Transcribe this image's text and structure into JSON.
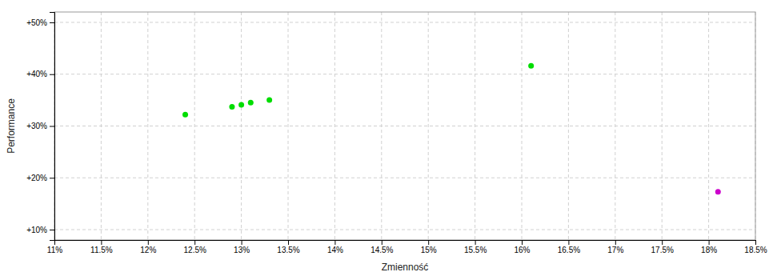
{
  "chart_data": {
    "type": "scatter",
    "xlabel": "Zmienność",
    "ylabel": "Performance",
    "series": [
      {
        "color": "#00dd00",
        "x": [
          0.124,
          0.129,
          0.13,
          0.131,
          0.133,
          0.161
        ],
        "values": [
          0.322,
          0.337,
          0.341,
          0.345,
          0.35,
          0.416
        ]
      },
      {
        "color": "#cc00cc",
        "x": [
          0.181
        ],
        "values": [
          0.173
        ]
      }
    ],
    "xlim": [
      0.11,
      0.185
    ],
    "ylim": [
      0.08,
      0.52
    ],
    "xticks": [
      {
        "value": 0.11,
        "label": "11%"
      },
      {
        "value": 0.115,
        "label": "11.5%"
      },
      {
        "value": 0.12,
        "label": "12%"
      },
      {
        "value": 0.125,
        "label": "12.5%"
      },
      {
        "value": 0.13,
        "label": "13%"
      },
      {
        "value": 0.135,
        "label": "13.5%"
      },
      {
        "value": 0.14,
        "label": "14%"
      },
      {
        "value": 0.145,
        "label": "14.5%"
      },
      {
        "value": 0.15,
        "label": "15%"
      },
      {
        "value": 0.155,
        "label": "15.5%"
      },
      {
        "value": 0.16,
        "label": "16%"
      },
      {
        "value": 0.165,
        "label": "16.5%"
      },
      {
        "value": 0.17,
        "label": "17%"
      },
      {
        "value": 0.175,
        "label": "17.5%"
      },
      {
        "value": 0.18,
        "label": "18%"
      },
      {
        "value": 0.185,
        "label": "18.5%"
      }
    ],
    "yticks": [
      {
        "value": 0.1,
        "label": "+10%"
      },
      {
        "value": 0.2,
        "label": "+20%"
      },
      {
        "value": 0.3,
        "label": "+30%"
      },
      {
        "value": 0.4,
        "label": "+40%"
      },
      {
        "value": 0.5,
        "label": "+50%"
      }
    ],
    "grid": true
  }
}
